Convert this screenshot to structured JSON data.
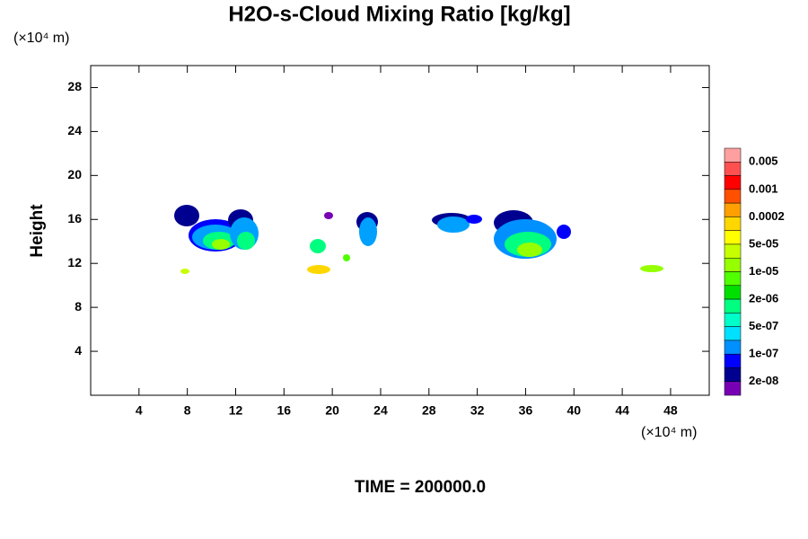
{
  "chart_data": {
    "type": "contour",
    "title": "H2O-s-Cloud Mixing Ratio [kg/kg]",
    "y_unit": "(×10⁴ m)",
    "x_unit": "(×10⁴ m)",
    "ylabel": "Height",
    "footer": "TIME = 200000.0",
    "xlim": [
      0,
      51.2
    ],
    "ylim": [
      0,
      30
    ],
    "xticks": [
      4,
      8,
      12,
      16,
      20,
      24,
      28,
      32,
      36,
      40,
      44,
      48
    ],
    "yticks": [
      4,
      8,
      12,
      16,
      20,
      24,
      28
    ],
    "colorbar": {
      "colors": [
        "#ffa0a0",
        "#ff5050",
        "#ff0000",
        "#ff5000",
        "#ffa000",
        "#ffd700",
        "#ffff00",
        "#c8ff00",
        "#96ff00",
        "#50ff00",
        "#00e000",
        "#00ff80",
        "#00ffc8",
        "#00e0ff",
        "#0090ff",
        "#0000ff",
        "#000090",
        "#7800b4"
      ],
      "ticks": [
        {
          "value": 0.005,
          "label": "0.005"
        },
        {
          "value": 0.001,
          "label": "0.001"
        },
        {
          "value": 0.0002,
          "label": "0.0002"
        },
        {
          "value": 5e-05,
          "label": "5e-05"
        },
        {
          "value": 1e-05,
          "label": "1e-05"
        },
        {
          "value": 2e-06,
          "label": "2e-06"
        },
        {
          "value": 5e-07,
          "label": "5e-07"
        },
        {
          "value": 1e-07,
          "label": "1e-07"
        },
        {
          "value": 2e-08,
          "label": "2e-08"
        }
      ]
    }
  }
}
